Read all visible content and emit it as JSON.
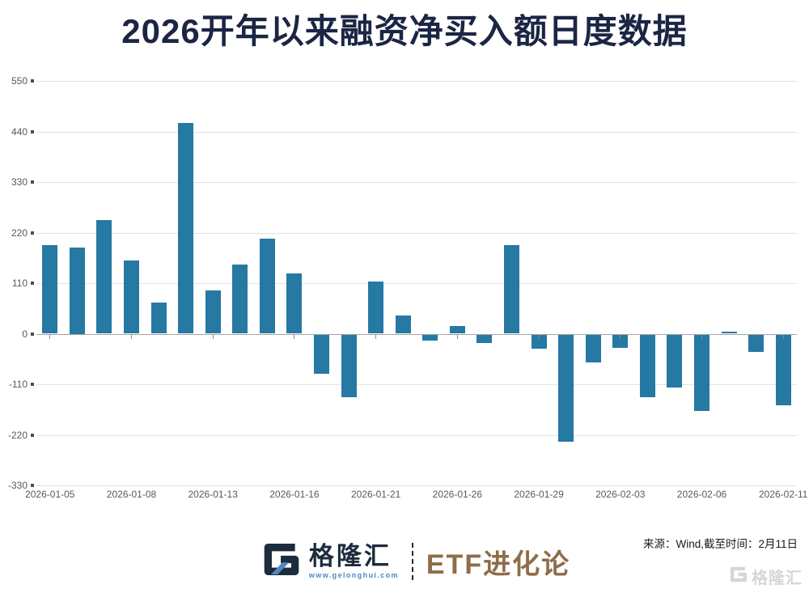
{
  "title": "2026开年以来融资净买入额日度数据",
  "source_note": "来源：Wind,截至时间：2月11日",
  "footer": {
    "brand_name": "格隆汇",
    "brand_url": "www.gelonghui.com",
    "partner_name": "ETF进化论"
  },
  "watermark_text": "格隆汇",
  "colors": {
    "title": "#1b2544",
    "bar": "#2579a3",
    "gridline": "#e2e2e2",
    "axis_line": "#a3a3a3",
    "axis_label": "#595959",
    "source_text": "#1a1a1a",
    "brand_navy": "#1d2b3e",
    "brand_blue": "#4e87c0",
    "partner_bronze": "#8f6c49",
    "watermark_gray": "#d6d6d6"
  },
  "chart_data": {
    "type": "bar",
    "title": "2026开年以来融资净买入额日度数据",
    "x": [
      "2026-01-05",
      "2026-01-06",
      "2026-01-07",
      "2026-01-08",
      "2026-01-09",
      "2026-01-12",
      "2026-01-13",
      "2026-01-14",
      "2026-01-15",
      "2026-01-16",
      "2026-01-19",
      "2026-01-20",
      "2026-01-21",
      "2026-01-22",
      "2026-01-23",
      "2026-01-26",
      "2026-01-27",
      "2026-01-28",
      "2026-01-29",
      "2026-01-30",
      "2026-02-02",
      "2026-02-03",
      "2026-02-04",
      "2026-02-05",
      "2026-02-06",
      "2026-02-09",
      "2026-02-10",
      "2026-02-11"
    ],
    "values": [
      192,
      187,
      248,
      159,
      67,
      458,
      94,
      151,
      206,
      131,
      -85,
      -137,
      114,
      40,
      -13,
      17,
      -19,
      192,
      -30,
      -233,
      -61,
      -29,
      -137,
      -115,
      -167,
      5,
      -37,
      -154
    ],
    "x_tick_labels": [
      "2026-01-05",
      "2026-01-08",
      "2026-01-13",
      "2026-01-16",
      "2026-01-21",
      "2026-01-26",
      "2026-01-29",
      "2026-02-03",
      "2026-02-06",
      "2026-02-11"
    ],
    "x_tick_indices": [
      0,
      3,
      6,
      9,
      12,
      15,
      18,
      21,
      24,
      27
    ],
    "y_ticks": [
      550,
      440,
      330,
      220,
      110,
      0,
      -110,
      -220,
      -330
    ],
    "ylim": [
      -330,
      550
    ],
    "xlabel": "",
    "ylabel": "",
    "grid": true,
    "legend": "none",
    "bar_color": "#2579a3"
  }
}
